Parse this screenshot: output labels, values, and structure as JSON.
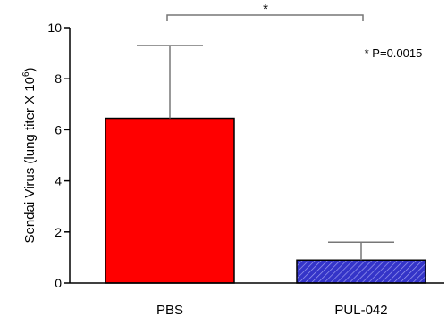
{
  "chart_data": {
    "type": "bar",
    "categories": [
      "PBS",
      "PUL-042"
    ],
    "values": [
      6.45,
      0.9
    ],
    "error_upper": [
      9.3,
      1.6
    ],
    "colors": [
      "#ff0000",
      "#3434c8"
    ],
    "patterns": [
      "solid",
      "diagonal-hatch"
    ],
    "ylabel": "Sendai Virus (lung titer X 10",
    "ylabel_superscript": "6",
    "ylabel_close": ")",
    "ylim": [
      0,
      10
    ],
    "yticks": [
      "0",
      "2",
      "4",
      "6",
      "8",
      "10"
    ],
    "significance_mark": "*",
    "annotation": "* P=0.0015"
  }
}
